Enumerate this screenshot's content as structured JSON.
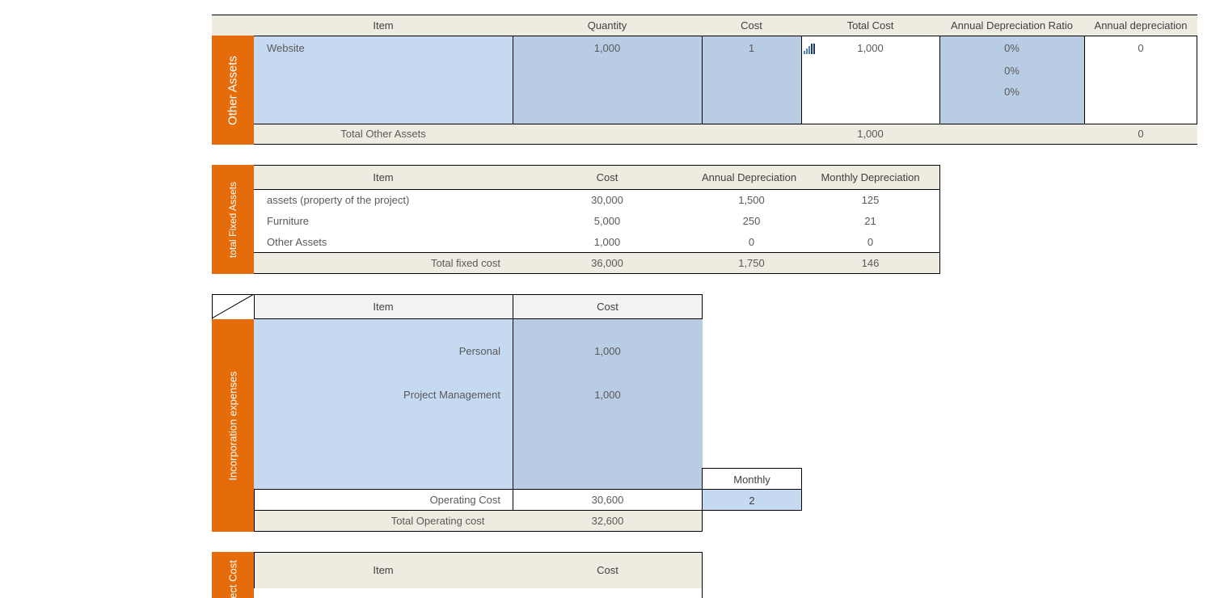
{
  "other_assets": {
    "side_label": "Other Assets",
    "headers": [
      "Item",
      "Quantity",
      "Cost",
      "Total Cost",
      "Annual Depreciation Ratio",
      "Annual depreciation"
    ],
    "row": {
      "item": "Website",
      "quantity": "1,000",
      "cost": "1",
      "total_cost": "1,000",
      "annual_depreciation": "0"
    },
    "ratios": [
      "0%",
      "0%",
      "0%"
    ],
    "total": {
      "label": "Total Other Assets",
      "total_cost": "1,000",
      "annual_depreciation": "0"
    },
    "icon": "signal-bars-icon"
  },
  "fixed_assets": {
    "side_label": "total Fixed Assets",
    "headers": [
      "Item",
      "Cost",
      "Annual Depreciation",
      "Monthly Depreciation"
    ],
    "rows": [
      {
        "item": "assets (property of the project)",
        "cost": "30,000",
        "annual": "1,500",
        "monthly": "125"
      },
      {
        "item": "Furniture",
        "cost": "5,000",
        "annual": "250",
        "monthly": "21"
      },
      {
        "item": "Other Assets",
        "cost": "1,000",
        "annual": "0",
        "monthly": "0"
      }
    ],
    "total": {
      "label": "Total fixed cost",
      "cost": "36,000",
      "annual": "1,750",
      "monthly": "146"
    }
  },
  "incorporation": {
    "side_label": "Incorporation expenses",
    "headers": [
      "Item",
      "Cost"
    ],
    "rows": [
      {
        "item": "Personal",
        "cost": "1,000"
      },
      {
        "item": "Project Management",
        "cost": "1,000"
      }
    ],
    "monthly_label": "Monthly",
    "monthly_value": "2",
    "operating": {
      "label": "Operating Cost",
      "cost": "30,600"
    },
    "total": {
      "label": "Total Operating cost",
      "cost": "32,600"
    }
  },
  "project_cost": {
    "side_label": "ect Cost",
    "headers": [
      "Item",
      "Cost"
    ]
  }
}
